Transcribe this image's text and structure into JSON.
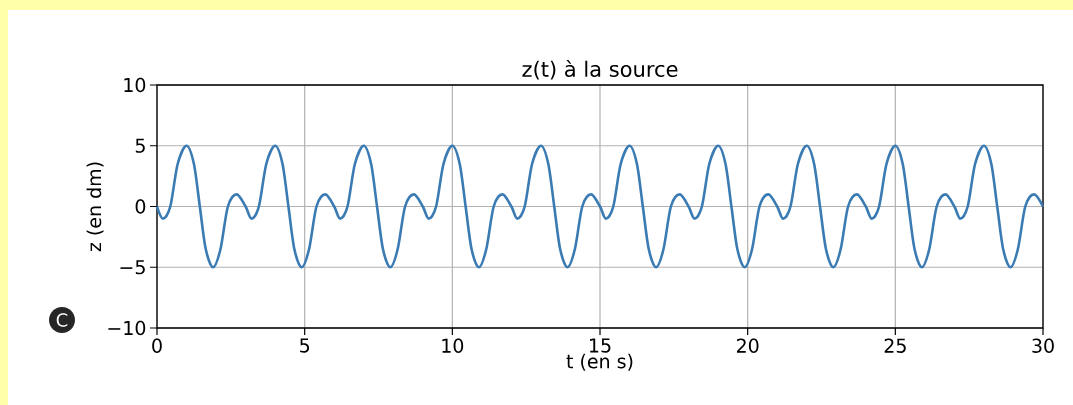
{
  "chart_data": {
    "type": "line",
    "title": "z(t) à la source",
    "xlabel": "t (en s)",
    "ylabel": "z (en dm)",
    "x": [
      0,
      0.2,
      0.45,
      0.7,
      1,
      1.25,
      1.45,
      1.65,
      1.9,
      2.15,
      2.4,
      2.7,
      3,
      3.2,
      3.45,
      3.7,
      4,
      4.25,
      4.45,
      4.65,
      4.9,
      5.15,
      5.4,
      5.7,
      6,
      6.2,
      6.45,
      6.7,
      7,
      7.25,
      7.45,
      7.65,
      7.9,
      8.15,
      8.4,
      8.7,
      9,
      9.2,
      9.45,
      9.7,
      10,
      10.25,
      10.45,
      10.65,
      10.9,
      11.15,
      11.4,
      11.7,
      12,
      12.2,
      12.45,
      12.7,
      13,
      13.25,
      13.45,
      13.65,
      13.9,
      14.15,
      14.4,
      14.7,
      15,
      15.2,
      15.45,
      15.7,
      16,
      16.25,
      16.45,
      16.65,
      16.9,
      17.15,
      17.4,
      17.7,
      18,
      18.2,
      18.45,
      18.7,
      19,
      19.25,
      19.45,
      19.65,
      19.9,
      20.15,
      20.4,
      20.7,
      21,
      21.2,
      21.45,
      21.7,
      22,
      22.25,
      22.45,
      22.65,
      22.9,
      23.15,
      23.4,
      23.7,
      24,
      24.2,
      24.45,
      24.7,
      25,
      25.25,
      25.45,
      25.65,
      25.9,
      26.15,
      26.4,
      26.7,
      27,
      27.2,
      27.45,
      27.7,
      28,
      28.25,
      28.45,
      28.65,
      28.9,
      29.15,
      29.4,
      29.7,
      30
    ],
    "series": [
      {
        "color": "#3b7bb3",
        "values": [
          0,
          -1,
          0,
          3.5,
          5,
          3.5,
          0,
          -3.5,
          -5,
          -3.5,
          0,
          1,
          0,
          -1,
          0,
          3.5,
          5,
          3.5,
          0,
          -3.5,
          -5,
          -3.5,
          0,
          1,
          0,
          -1,
          0,
          3.5,
          5,
          3.5,
          0,
          -3.5,
          -5,
          -3.5,
          0,
          1,
          0,
          -1,
          0,
          3.5,
          5,
          3.5,
          0,
          -3.5,
          -5,
          -3.5,
          0,
          1,
          0,
          -1,
          0,
          3.5,
          5,
          3.5,
          0,
          -3.5,
          -5,
          -3.5,
          0,
          1,
          0,
          -1,
          0,
          3.5,
          5,
          3.5,
          0,
          -3.5,
          -5,
          -3.5,
          0,
          1,
          0,
          -1,
          0,
          3.5,
          5,
          3.5,
          0,
          -3.5,
          -5,
          -3.5,
          0,
          1,
          0,
          -1,
          0,
          3.5,
          5,
          3.5,
          0,
          -3.5,
          -5,
          -3.5,
          0,
          1,
          0,
          -1,
          0,
          3.5,
          5,
          3.5,
          0,
          -3.5,
          -5,
          -3.5,
          0,
          1,
          0,
          -1,
          0,
          3.5,
          5,
          3.5,
          0,
          -3.5,
          -5,
          -3.5,
          0,
          1,
          0
        ]
      }
    ],
    "xlim": [
      0,
      30
    ],
    "ylim": [
      -10,
      10
    ],
    "xticks": [
      0,
      5,
      10,
      15,
      20,
      25,
      30
    ],
    "yticks": [
      {
        "value": -10,
        "label": "−10"
      },
      {
        "value": -5,
        "label": "−5"
      },
      0,
      5,
      10
    ],
    "grid": true,
    "marker": "none",
    "line_style": "solid",
    "annotations": [
      "C"
    ]
  }
}
